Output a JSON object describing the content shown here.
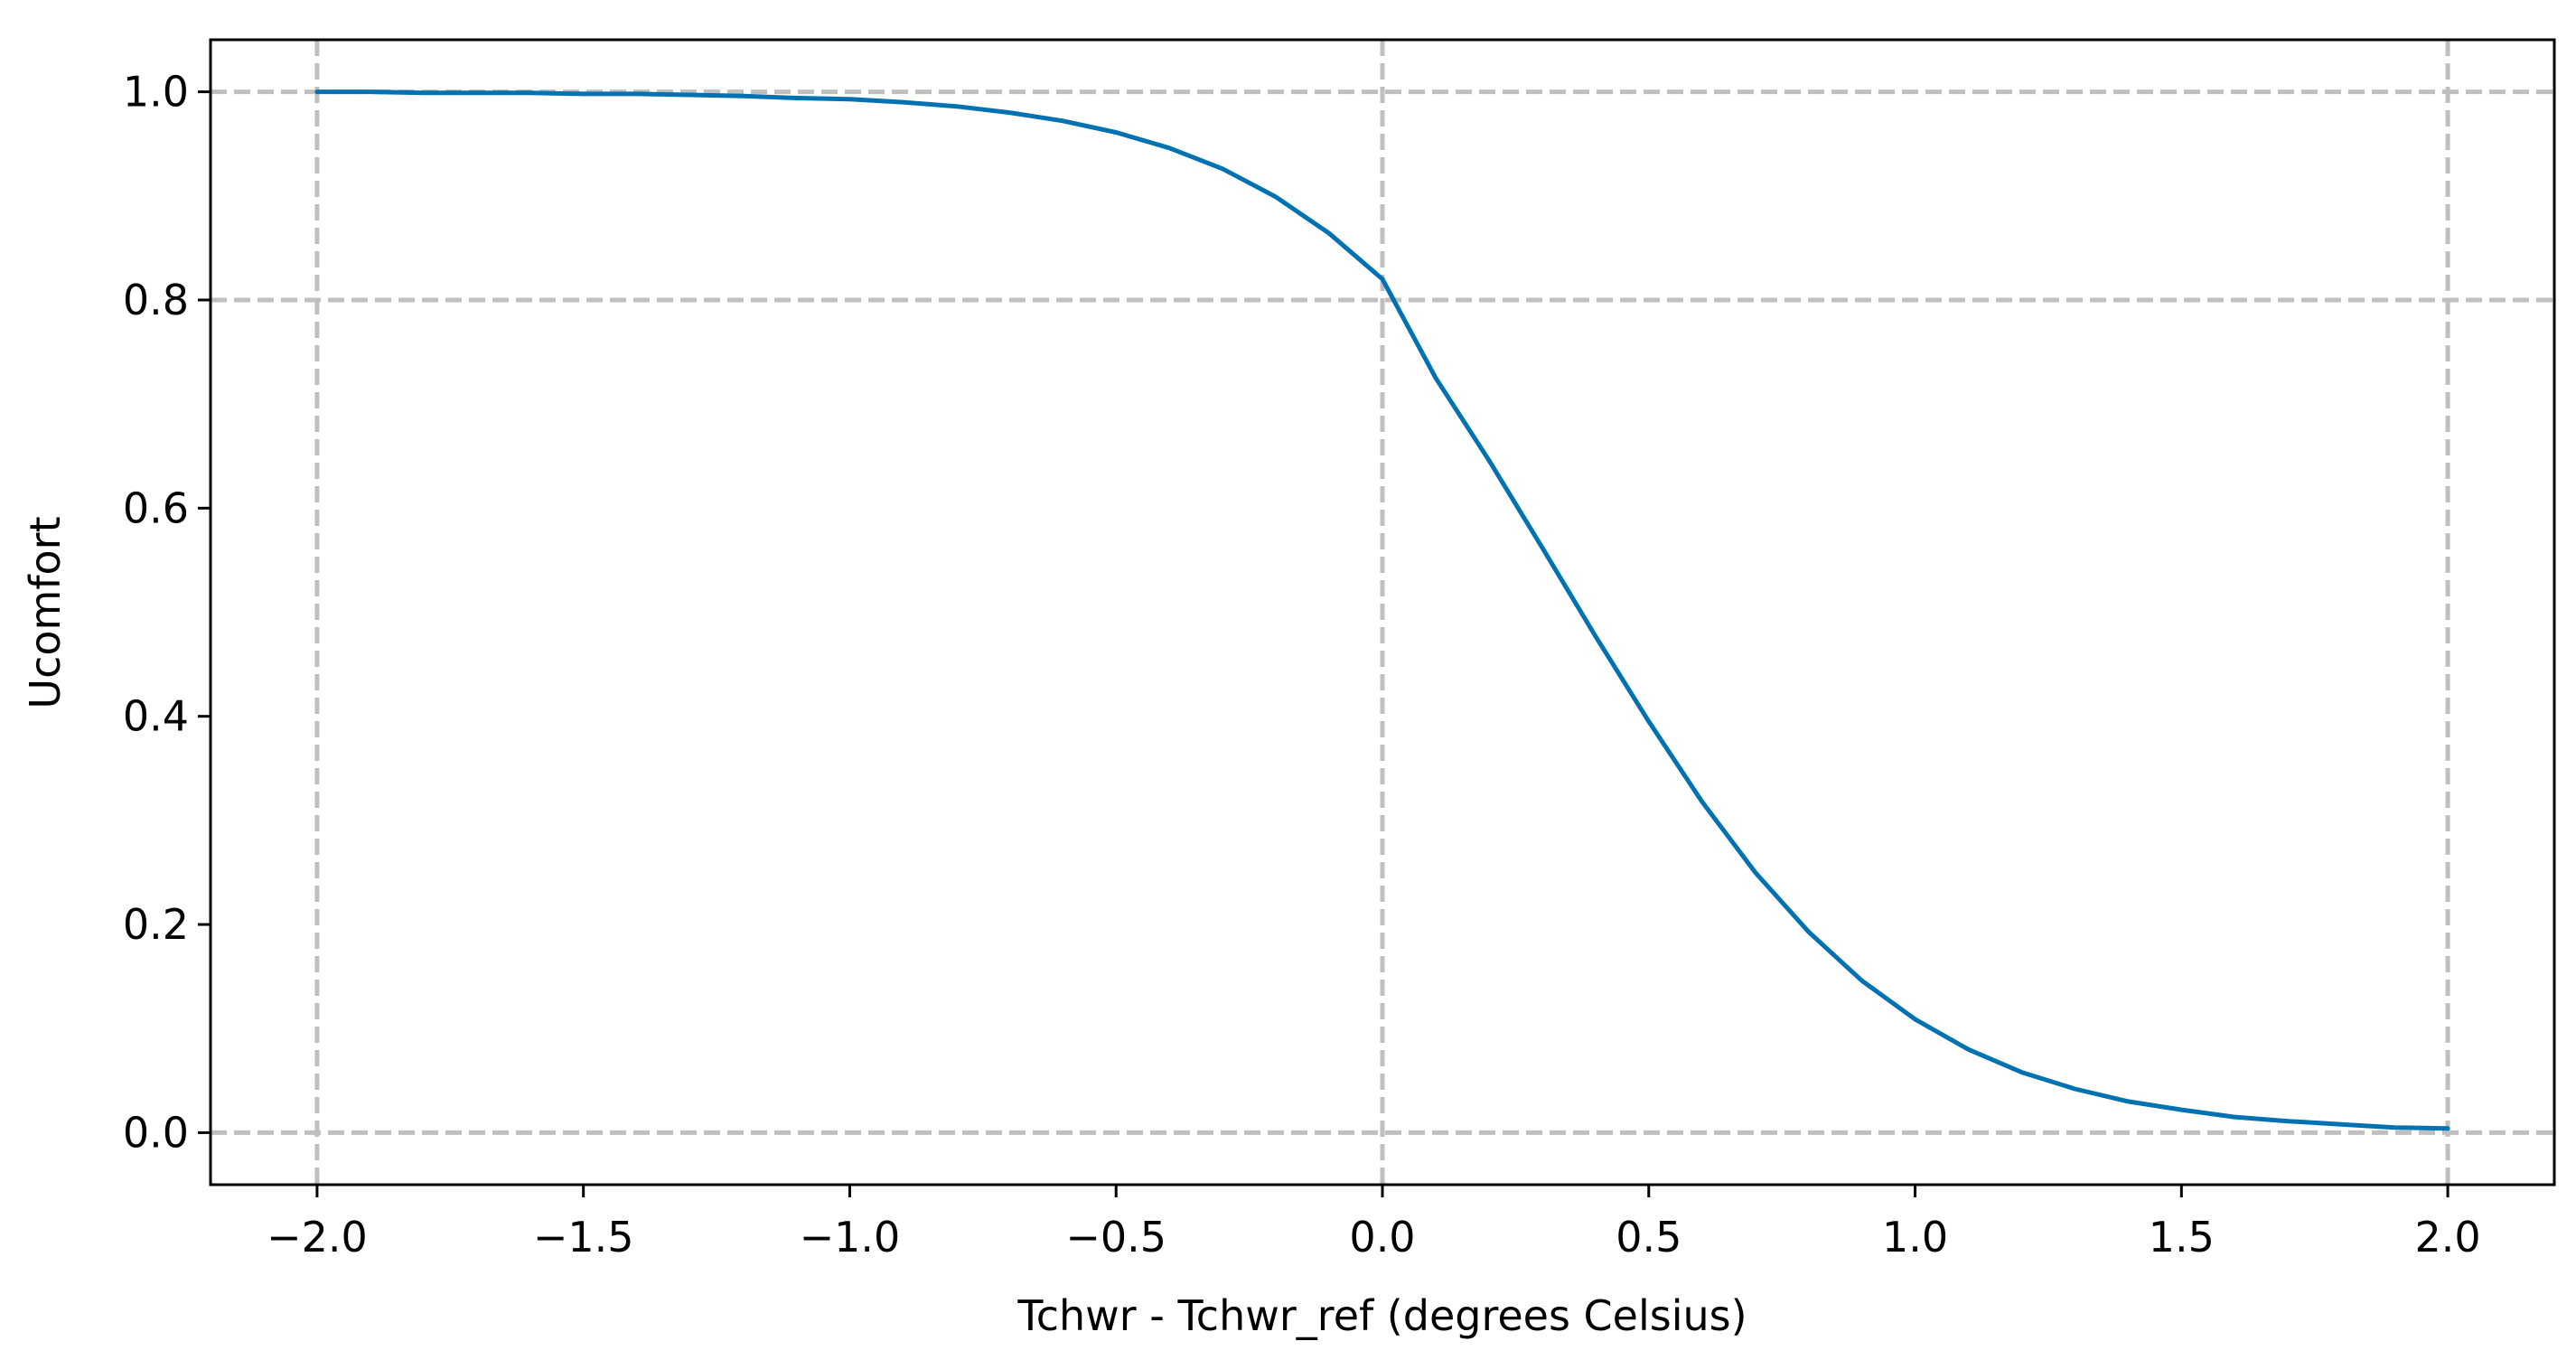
{
  "chart_data": {
    "type": "line",
    "title": "",
    "xlabel": "Tchwr - Tchwr_ref  (degrees Celsius)",
    "ylabel": "Ucomfort",
    "xlim": [
      -2.2,
      2.2
    ],
    "ylim": [
      -0.05,
      1.05
    ],
    "grid": true,
    "grid_style": "dashed",
    "x_ticks": [
      -2.0,
      -1.5,
      -1.0,
      -0.5,
      0.0,
      0.5,
      1.0,
      1.5,
      2.0
    ],
    "x_tick_labels": [
      "−2.0",
      "−1.5",
      "−1.0",
      "−0.5",
      "0.0",
      "0.5",
      "1.0",
      "1.5",
      "2.0"
    ],
    "y_ticks": [
      0.0,
      0.2,
      0.4,
      0.6,
      0.8,
      1.0
    ],
    "y_tick_labels": [
      "0.0",
      "0.2",
      "0.4",
      "0.6",
      "0.8",
      "1.0"
    ],
    "x_gridlines": [
      -2.0,
      0.0,
      2.0
    ],
    "y_gridlines": [
      0.0,
      0.8,
      1.0
    ],
    "colors": {
      "line": "#0072b2",
      "grid": "#bfbfbf",
      "axes": "#000000"
    },
    "series": [
      {
        "x": [
          -2.0,
          -1.9,
          -1.8,
          -1.7,
          -1.6,
          -1.5,
          -1.4,
          -1.3,
          -1.2,
          -1.1,
          -1.0,
          -0.9,
          -0.8,
          -0.7,
          -0.6,
          -0.5,
          -0.4,
          -0.3,
          -0.2,
          -0.1,
          0.0,
          0.1,
          0.2,
          0.3,
          0.4,
          0.5,
          0.6,
          0.7,
          0.8,
          0.9,
          1.0,
          1.1,
          1.2,
          1.3,
          1.4,
          1.5,
          1.6,
          1.7,
          1.8,
          1.9,
          2.0
        ],
        "y": [
          1.0,
          1.0,
          0.999,
          0.999,
          0.999,
          0.998,
          0.998,
          0.997,
          0.996,
          0.994,
          0.993,
          0.99,
          0.986,
          0.98,
          0.972,
          0.961,
          0.946,
          0.926,
          0.899,
          0.864,
          0.82,
          0.725,
          0.646,
          0.562,
          0.477,
          0.395,
          0.318,
          0.25,
          0.193,
          0.146,
          0.109,
          0.08,
          0.058,
          0.042,
          0.03,
          0.022,
          0.015,
          0.011,
          0.008,
          0.005,
          0.004
        ]
      }
    ]
  }
}
